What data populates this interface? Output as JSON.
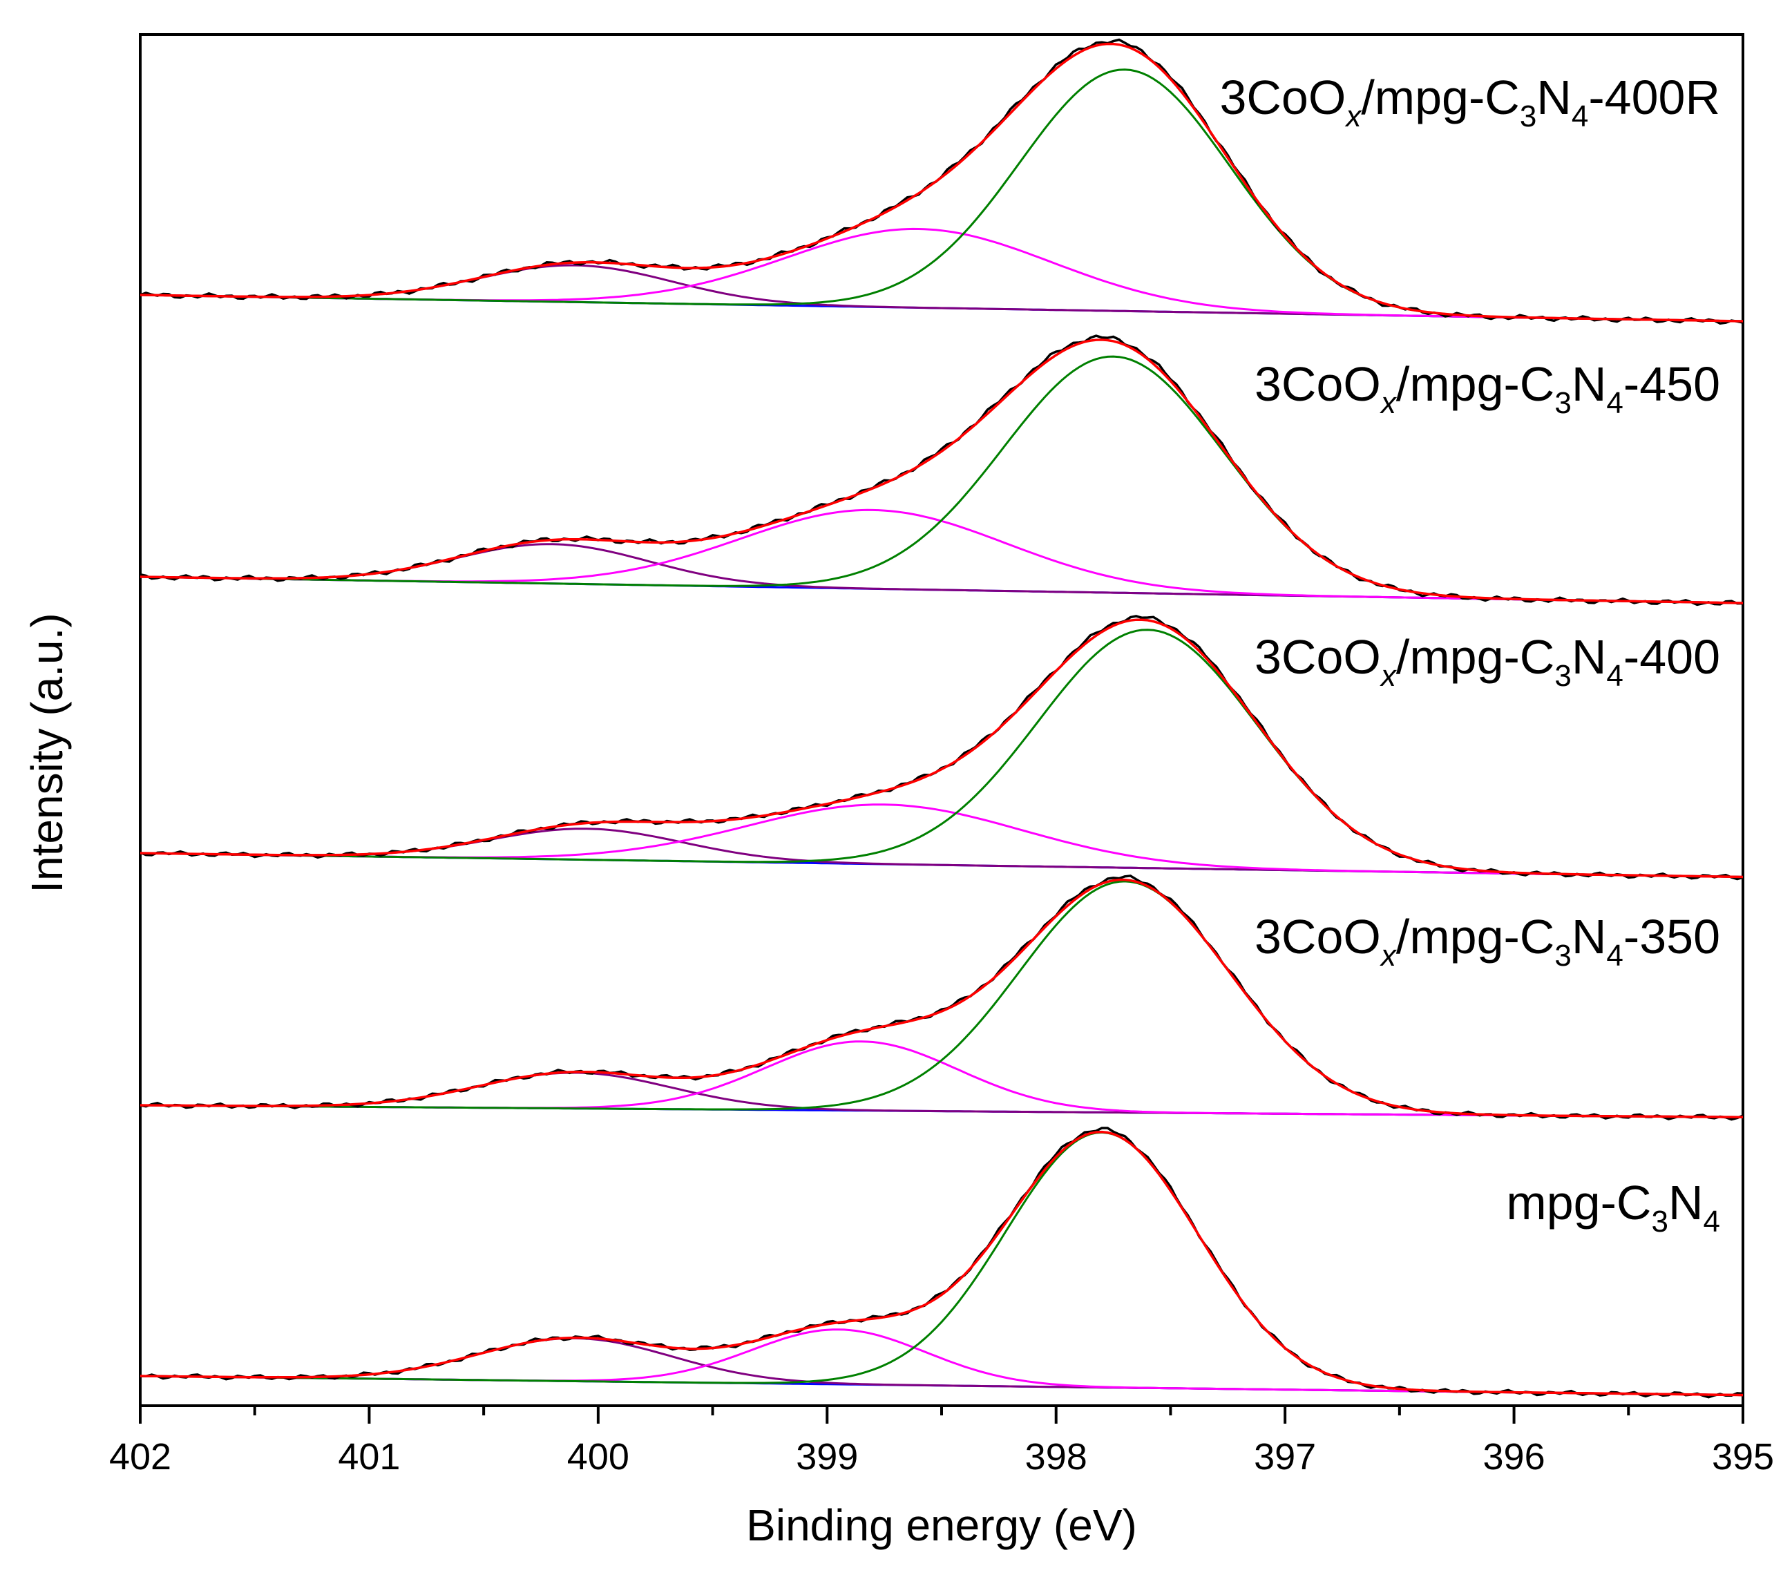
{
  "chart_data": {
    "type": "line",
    "title": "",
    "xlabel": "Binding energy (eV)",
    "ylabel": "Intensity (a.u.)",
    "xlim": [
      402,
      395
    ],
    "x_reversed": true,
    "x_ticks": [
      402,
      401,
      400,
      399,
      398,
      397,
      396,
      395
    ],
    "y_ticks": "none (arbitrary units, stacked offsets)",
    "legend": "none",
    "series_colors": {
      "experimental": "#000000",
      "envelope_fit": "#ff0000",
      "component_low_BE": "#008000",
      "component_mid_BE": "#ff00ff",
      "component_high_BE": "#800080",
      "background": "#0000ff"
    },
    "panels": [
      {
        "label_parts": [
          "3CoO",
          "x",
          "/mpg-C",
          "3",
          "N",
          "4",
          "-400R"
        ],
        "baseline": 0.0,
        "bg_left": 0.0,
        "bg_right": -0.1,
        "components": [
          {
            "name": "component_low_BE",
            "center": 397.7,
            "height": 0.92,
            "sigma": 0.46
          },
          {
            "name": "component_mid_BE",
            "center": 398.6,
            "height": 0.3,
            "sigma": 0.58
          },
          {
            "name": "component_high_BE",
            "center": 400.1,
            "height": 0.14,
            "sigma": 0.42
          }
        ]
      },
      {
        "label_parts": [
          "3CoO",
          "x",
          "/mpg-C",
          "3",
          "N",
          "4",
          "-450"
        ],
        "baseline": 0.0,
        "bg_left": 0.0,
        "bg_right": -0.1,
        "components": [
          {
            "name": "component_low_BE",
            "center": 397.75,
            "height": 0.9,
            "sigma": 0.48
          },
          {
            "name": "component_mid_BE",
            "center": 398.8,
            "height": 0.3,
            "sigma": 0.58
          },
          {
            "name": "component_high_BE",
            "center": 400.2,
            "height": 0.15,
            "sigma": 0.42
          }
        ]
      },
      {
        "label_parts": [
          "3CoO",
          "x",
          "/mpg-C",
          "3",
          "N",
          "4",
          "-400"
        ],
        "baseline": 0.0,
        "bg_left": 0.0,
        "bg_right": -0.1,
        "components": [
          {
            "name": "component_low_BE",
            "center": 397.6,
            "height": 1.0,
            "sigma": 0.48
          },
          {
            "name": "component_mid_BE",
            "center": 398.75,
            "height": 0.25,
            "sigma": 0.6
          },
          {
            "name": "component_high_BE",
            "center": 400.05,
            "height": 0.13,
            "sigma": 0.42
          }
        ]
      },
      {
        "label_parts": [
          "3CoO",
          "x",
          "/mpg-C",
          "3",
          "N",
          "4",
          "-350"
        ],
        "baseline": 0.0,
        "bg_left": 0.0,
        "bg_right": -0.05,
        "components": [
          {
            "name": "component_low_BE",
            "center": 397.7,
            "height": 0.97,
            "sigma": 0.46
          },
          {
            "name": "component_mid_BE",
            "center": 398.85,
            "height": 0.29,
            "sigma": 0.42
          },
          {
            "name": "component_high_BE",
            "center": 400.1,
            "height": 0.15,
            "sigma": 0.42
          }
        ]
      },
      {
        "label_parts": [
          "mpg-C",
          "3",
          "N",
          "4"
        ],
        "baseline": 0.0,
        "bg_left": 0.0,
        "bg_right": -0.08,
        "components": [
          {
            "name": "component_low_BE",
            "center": 397.8,
            "height": 1.07,
            "sigma": 0.42
          },
          {
            "name": "component_mid_BE",
            "center": 398.95,
            "height": 0.23,
            "sigma": 0.38
          },
          {
            "name": "component_high_BE",
            "center": 400.1,
            "height": 0.18,
            "sigma": 0.42
          }
        ]
      }
    ]
  }
}
